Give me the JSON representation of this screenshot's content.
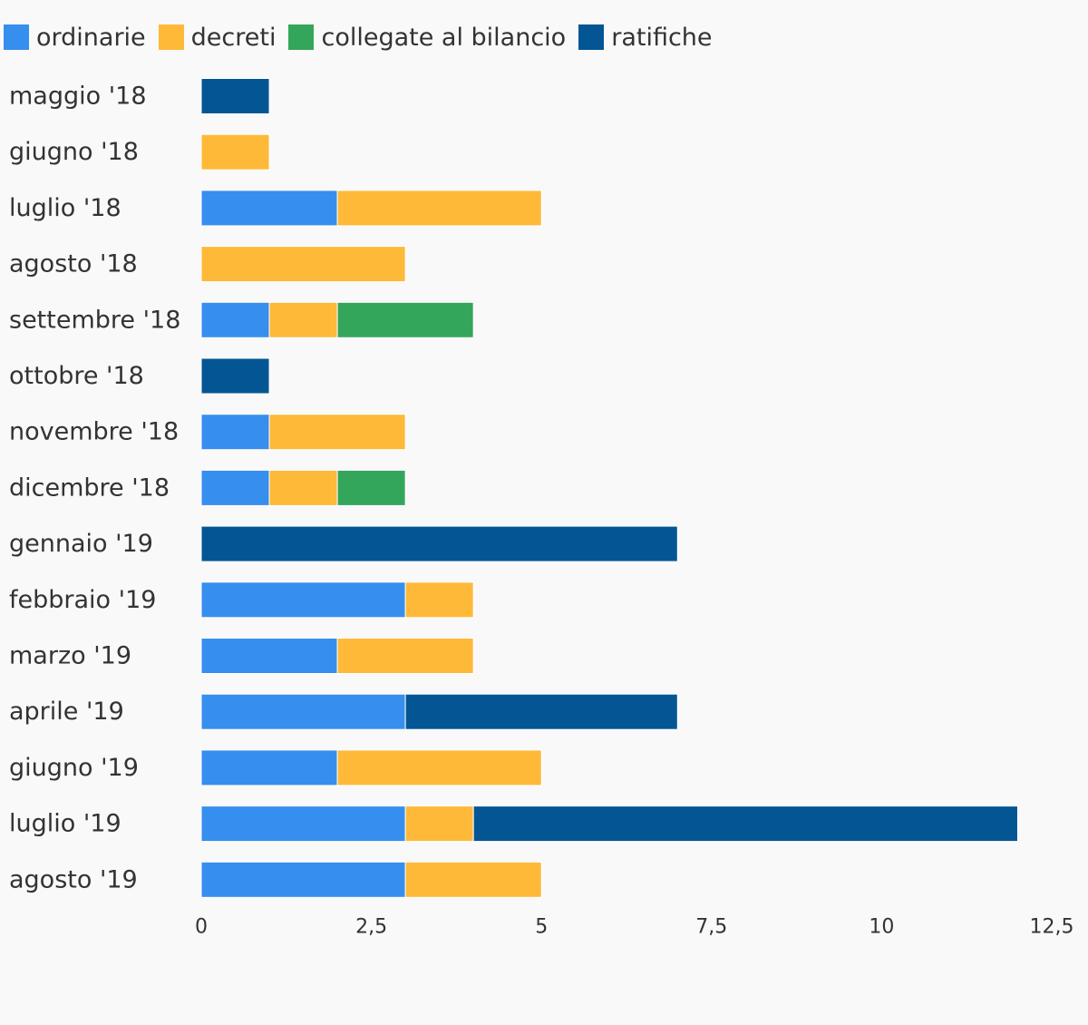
{
  "chart_data": {
    "type": "bar",
    "orientation": "horizontal",
    "stacked": true,
    "categories": [
      "maggio '18",
      "giugno '18",
      "luglio '18",
      "agosto '18",
      "settembre '18",
      "ottobre '18",
      "novembre '18",
      "dicembre '18",
      "gennaio '19",
      "febbraio '19",
      "marzo '19",
      "aprile '19",
      "giugno '19",
      "luglio '19",
      "agosto '19"
    ],
    "series": [
      {
        "name": "ordinarie",
        "color": "#368eef",
        "values": [
          0,
          0,
          2,
          0,
          1,
          0,
          1,
          1,
          0,
          3,
          2,
          3,
          2,
          3,
          3
        ]
      },
      {
        "name": "decreti",
        "color": "#ffb938",
        "values": [
          0,
          1,
          3,
          3,
          1,
          0,
          2,
          1,
          0,
          1,
          2,
          0,
          3,
          1,
          2
        ]
      },
      {
        "name": "collegate al bilancio",
        "color": "#34a65b",
        "values": [
          0,
          0,
          0,
          0,
          2,
          0,
          0,
          1,
          0,
          0,
          0,
          0,
          0,
          0,
          0
        ]
      },
      {
        "name": "ratifiche",
        "color": "#035693",
        "values": [
          1,
          0,
          0,
          0,
          0,
          1,
          0,
          0,
          7,
          0,
          0,
          4,
          0,
          8,
          0
        ]
      }
    ],
    "xlim": [
      0,
      12.5
    ],
    "xticks": [
      "0",
      "2,5",
      "5",
      "7,5",
      "10",
      "12,5"
    ],
    "grid": false,
    "legend_position": "top-left",
    "title": "",
    "xlabel": "",
    "ylabel": ""
  }
}
